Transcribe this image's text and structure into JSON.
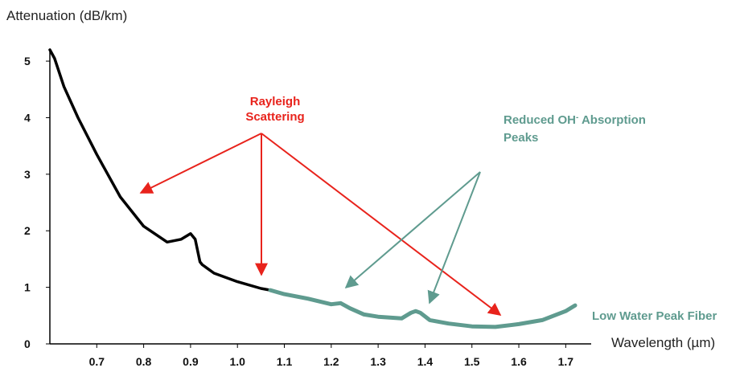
{
  "chart_data": {
    "type": "line",
    "ylabel": "Attenuation (dB/km)",
    "xlabel": "Wavelength (µm)",
    "xlim": [
      0.6,
      1.72
    ],
    "ylim": [
      0,
      5.2
    ],
    "x_ticks": [
      {
        "value": 0.7,
        "label": "0.7"
      },
      {
        "value": 0.8,
        "label": "0.8"
      },
      {
        "value": 0.9,
        "label": "0.9"
      },
      {
        "value": 1.0,
        "label": "1.0"
      },
      {
        "value": 1.1,
        "label": "1.1"
      },
      {
        "value": 1.2,
        "label": "1.2"
      },
      {
        "value": 1.3,
        "label": "1.3"
      },
      {
        "value": 1.4,
        "label": "1.4"
      },
      {
        "value": 1.5,
        "label": "1.5"
      },
      {
        "value": 1.6,
        "label": "1.6"
      },
      {
        "value": 1.7,
        "label": "1.7"
      }
    ],
    "y_ticks": [
      {
        "value": 0,
        "label": "0"
      },
      {
        "value": 1,
        "label": "1"
      },
      {
        "value": 2,
        "label": "2"
      },
      {
        "value": 3,
        "label": "3"
      },
      {
        "value": 4,
        "label": "4"
      },
      {
        "value": 5,
        "label": "5"
      }
    ],
    "grid": false,
    "series": [
      {
        "color": "#000000",
        "x": [
          0.6,
          0.61,
          0.63,
          0.66,
          0.7,
          0.75,
          0.8,
          0.85,
          0.88,
          0.9,
          0.91,
          0.92,
          0.925,
          0.95,
          1.0,
          1.05,
          1.07
        ],
        "y": [
          5.2,
          5.05,
          4.55,
          4.0,
          3.35,
          2.6,
          2.08,
          1.8,
          1.85,
          1.95,
          1.85,
          1.45,
          1.4,
          1.25,
          1.1,
          0.98,
          0.95
        ]
      },
      {
        "name": "Low Water Peak Fiber",
        "color": "#5f9b8f",
        "x": [
          1.07,
          1.1,
          1.15,
          1.2,
          1.22,
          1.24,
          1.27,
          1.3,
          1.35,
          1.37,
          1.38,
          1.39,
          1.41,
          1.45,
          1.5,
          1.55,
          1.6,
          1.65,
          1.7,
          1.72
        ],
        "y": [
          0.95,
          0.88,
          0.8,
          0.7,
          0.72,
          0.63,
          0.52,
          0.48,
          0.45,
          0.55,
          0.58,
          0.55,
          0.42,
          0.36,
          0.31,
          0.3,
          0.35,
          0.42,
          0.58,
          0.68
        ]
      }
    ],
    "annotations": {
      "rayleigh": {
        "lines": [
          "Rayleigh",
          "Scattering"
        ],
        "color": "#e8231c"
      },
      "oh": {
        "prefix": "Reduced OH",
        "sup": "-",
        "suffix": " Absorption",
        "line2": "Peaks",
        "color": "#5f9b8f"
      }
    }
  }
}
